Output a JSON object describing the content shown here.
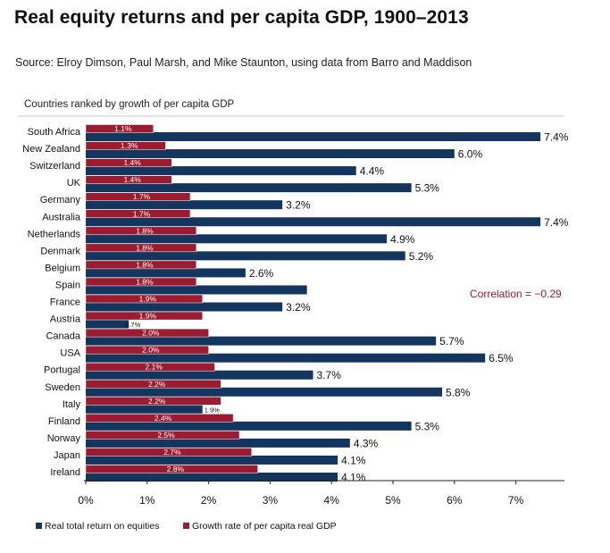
{
  "header": {
    "title": "Real equity returns and per capita GDP, 1900–2013",
    "source": "Source: Elroy Dimson, Paul Marsh, and Mike Staunton, using data from Barro and Maddison"
  },
  "chart_data": {
    "type": "bar",
    "orientation": "horizontal",
    "title": "Real equity returns and per capita GDP, 1900–2013",
    "subtitle": "Countries ranked by growth of per capita GDP",
    "annotation": "Correlation = −0.29",
    "xlim": [
      0,
      8
    ],
    "x_ticks": [
      "0%",
      "1%",
      "2%",
      "3%",
      "4%",
      "5%",
      "6%",
      "7%"
    ],
    "categories": [
      "South Africa",
      "New Zealand",
      "Switzerland",
      "UK",
      "Germany",
      "Australia",
      "Netherlands",
      "Denmark",
      "Belgium",
      "Spain",
      "France",
      "Austria",
      "Canada",
      "USA",
      "Portugal",
      "Sweden",
      "Italy",
      "Finland",
      "Norway",
      "Japan",
      "Ireland"
    ],
    "series": [
      {
        "name": "Growth rate of per capita real GDP",
        "color": "#9b1b30",
        "values": [
          1.1,
          1.3,
          1.4,
          1.4,
          1.7,
          1.7,
          1.8,
          1.8,
          1.8,
          1.8,
          1.9,
          1.9,
          2.0,
          2.0,
          2.1,
          2.2,
          2.2,
          2.4,
          2.5,
          2.7,
          2.8
        ],
        "labels": [
          "1.1%",
          "1.3%",
          "1.4%",
          "1.4%",
          "1.7%",
          "1.7%",
          "1.8%",
          "1.8%",
          "1.8%",
          "1.8%",
          "1.9%",
          "1.9%",
          "2.0%",
          "2.0%",
          "2.1%",
          "2.2%",
          "2.2%",
          "2.4%",
          "2.5%",
          "2.7%",
          "2.8%"
        ]
      },
      {
        "name": "Real total return on equities",
        "color": "#14365e",
        "values": [
          7.4,
          6.0,
          4.4,
          5.3,
          3.2,
          7.4,
          4.9,
          5.2,
          2.6,
          3.6,
          3.2,
          0.7,
          5.7,
          6.5,
          3.7,
          5.8,
          1.9,
          5.3,
          4.3,
          4.1,
          4.1
        ],
        "labels": [
          "7.4%",
          "6.0%",
          "4.4%",
          "5.3%",
          "3.2%",
          "7.4%",
          "4.9%",
          "5.2%",
          "2.6%",
          "",
          "3.2%",
          "0.7%",
          "5.7%",
          "6.5%",
          "3.7%",
          "5.8%",
          "1.9%",
          "5.3%",
          "4.3%",
          "4.1%",
          "4.1%"
        ]
      }
    ],
    "legend": {
      "placement": "bottom",
      "items": [
        "Real total return on equities",
        "Growth rate of per capita real GDP"
      ]
    }
  }
}
